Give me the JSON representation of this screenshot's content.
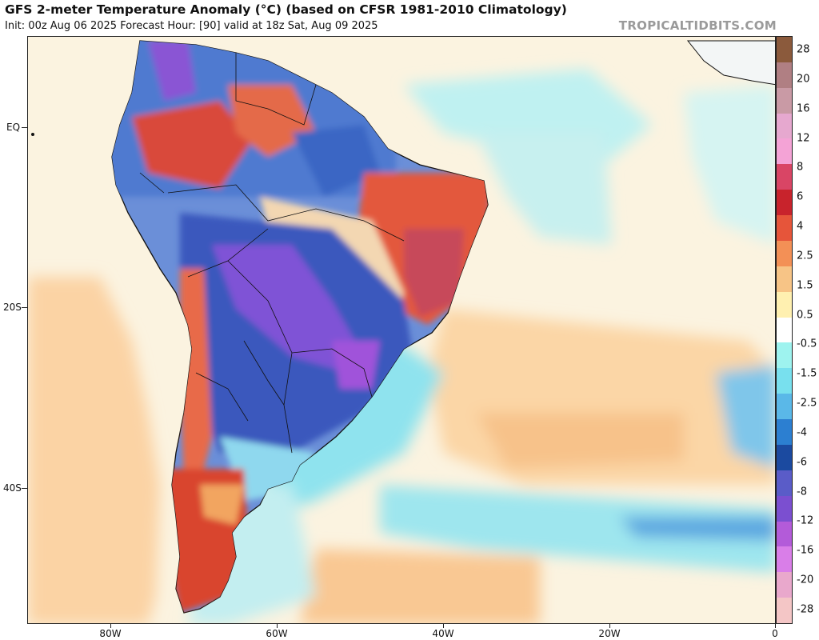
{
  "header": {
    "title": "GFS 2-meter Temperature Anomaly (°C) (based on CFSR 1981-2010 Climatology)",
    "subtitle": "Init: 00z Aug 06 2025   Forecast Hour: [90]   valid at 18z Sat, Aug 09 2025",
    "brand": "TROPICALTIDBITS.COM"
  },
  "axes": {
    "y_labels": [
      "EQ",
      "20S",
      "40S"
    ],
    "x_labels": [
      "80W",
      "60W",
      "40W",
      "20W",
      "0"
    ]
  },
  "colorbar": {
    "labels": [
      "28",
      "20",
      "16",
      "12",
      "8",
      "6",
      "4",
      "2.5",
      "1.5",
      "0.5",
      "-0.5",
      "-1.5",
      "-2.5",
      "-4",
      "-6",
      "-8",
      "-12",
      "-16",
      "-20",
      "-28"
    ],
    "colors": [
      "#8b5a3c",
      "#b07f83",
      "#c99aa5",
      "#e6a8cf",
      "#f4a3d6",
      "#d94565",
      "#c8232c",
      "#e6553a",
      "#f39056",
      "#f7c486",
      "#fff0b0",
      "#ffffff",
      "#9ef3ef",
      "#78e0ee",
      "#5ab8e8",
      "#2c7fd1",
      "#1b4aa0",
      "#5a5cc8",
      "#7b4fd0",
      "#b35bd9",
      "#d97ee8",
      "#e9a8cc",
      "#f4c6c6"
    ]
  },
  "map": {
    "regions": {
      "ocean_warm": "#fbe1b8",
      "ocean_cool": "#a8eef0",
      "ocean_neutral": "#fbf6e6",
      "warm_anomaly": "#e05a3a",
      "hot_anomaly": "#c9474f",
      "cold_anomaly": "#2d4fb0",
      "very_cold_anomaly": "#8657d4",
      "coastline": "#111111"
    }
  }
}
